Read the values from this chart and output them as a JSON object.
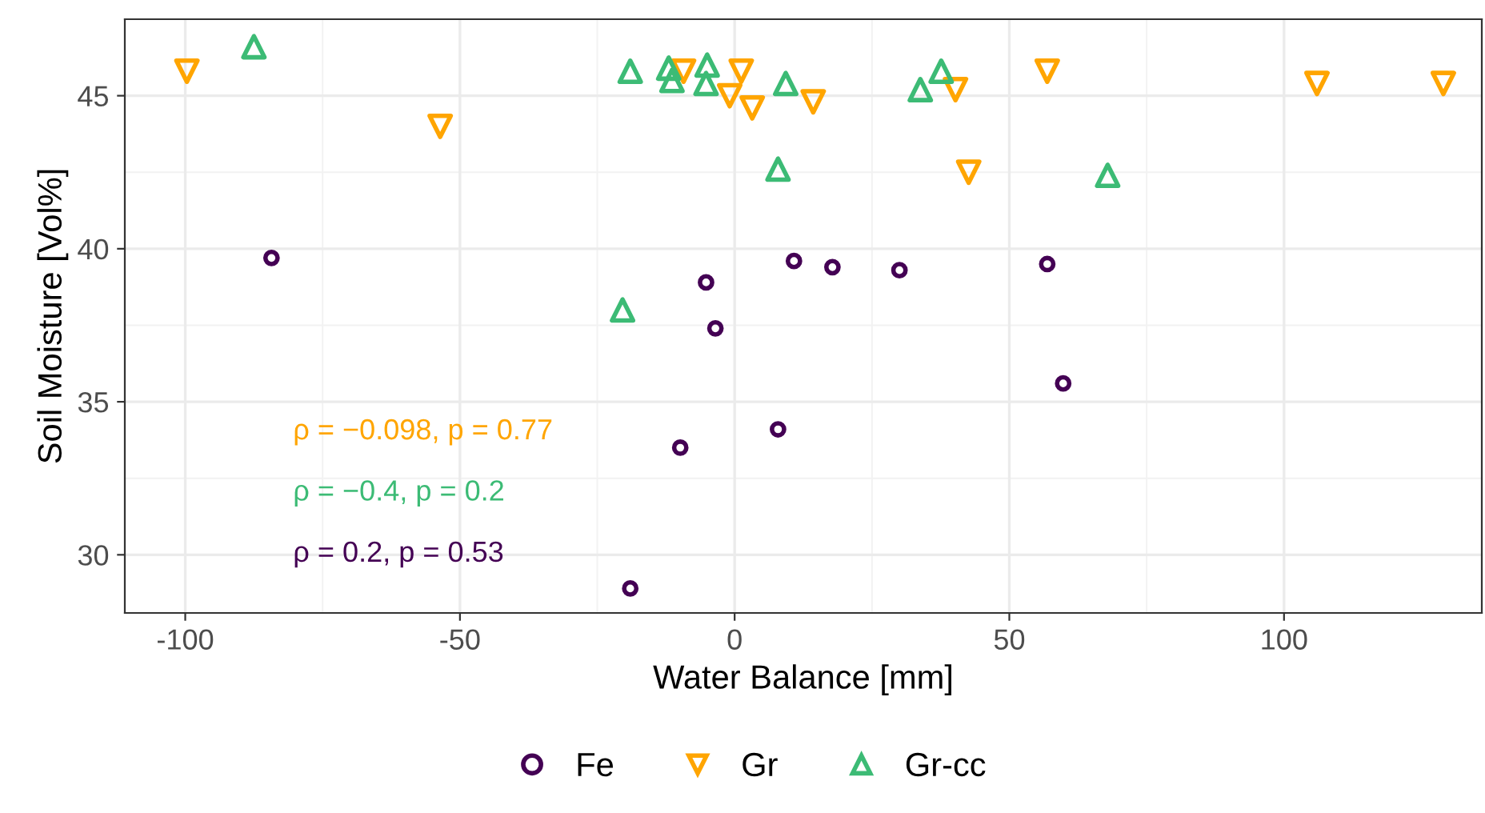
{
  "chart_data": {
    "type": "scatter",
    "xlabel": "Water Balance [mm]",
    "ylabel": "Soil Moisture [Vol%]",
    "xlim": [
      -111,
      136
    ],
    "ylim": [
      28.1,
      47.5
    ],
    "xticks": [
      -100,
      -50,
      0,
      50,
      100
    ],
    "yticks": [
      30,
      35,
      40,
      45
    ],
    "grid": true,
    "legend": "bottom",
    "series": [
      {
        "name": "Fe",
        "color": "#440154",
        "marker": "circle",
        "x": [
          -84.3,
          -5.2,
          -3.5,
          -9.9,
          -19,
          7.9,
          10.8,
          17.8,
          30,
          56.9,
          59.8
        ],
        "values": [
          39.7,
          38.9,
          37.4,
          33.5,
          28.9,
          34.1,
          39.6,
          39.4,
          39.3,
          39.5,
          35.6
        ]
      },
      {
        "name": "Gr",
        "color": "#ffa500",
        "marker": "triangle_down",
        "x": [
          -99.7,
          -53.6,
          -9.3,
          1.2,
          -0.9,
          3.2,
          14.3,
          40.2,
          42.6,
          56.9,
          106,
          129
        ],
        "values": [
          45.8,
          44.0,
          45.8,
          45.8,
          45.0,
          44.6,
          44.8,
          45.2,
          42.5,
          45.8,
          45.4,
          45.4
        ]
      },
      {
        "name": "Gr-cc",
        "color": "#3cbb75",
        "marker": "triangle",
        "x": [
          -87.5,
          -19,
          -12,
          -11.4,
          -5,
          -5.2,
          9.3,
          7.9,
          33.8,
          37.6,
          67.9,
          -20.4
        ],
        "values": [
          46.6,
          45.8,
          45.9,
          45.5,
          46.0,
          45.4,
          45.4,
          42.6,
          45.2,
          45.8,
          42.4,
          38.0
        ]
      }
    ],
    "annotations": [
      "ρ = 0.2, p = 0.53",
      "ρ = −0.098, p = 0.77",
      "ρ = −0.4, p = 0.2"
    ]
  }
}
